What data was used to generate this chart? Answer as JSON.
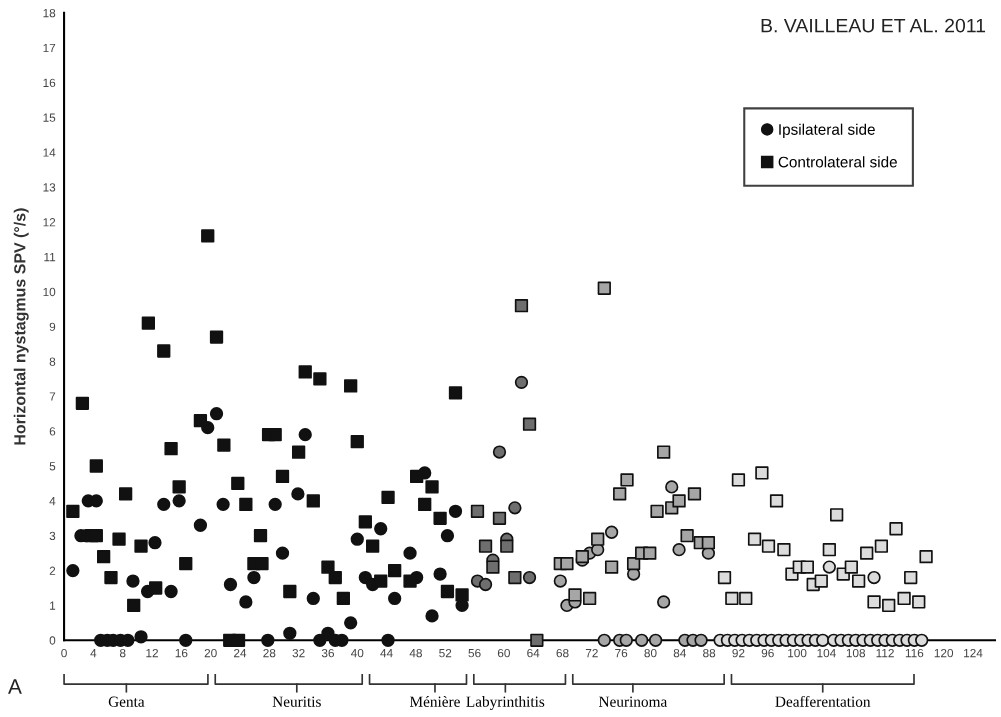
{
  "chart_data": {
    "type": "scatter",
    "ylabel": "Horizontal nystagmus SPV (°/s)",
    "xlim": [
      0,
      127
    ],
    "xticks": [
      0,
      4,
      8,
      12,
      16,
      20,
      24,
      28,
      32,
      36,
      40,
      44,
      48,
      52,
      56,
      60,
      64,
      68,
      72,
      76,
      80,
      84,
      88,
      92,
      96,
      100,
      104,
      108,
      112,
      116,
      120,
      124
    ],
    "ylim": [
      0,
      18
    ],
    "yticks": [
      0,
      1,
      2,
      3,
      4,
      5,
      6,
      7,
      8,
      9,
      10,
      11,
      12,
      13,
      14,
      15,
      16,
      17,
      18
    ],
    "grid": false,
    "legend": "top right",
    "annotations": [
      "B. VAILLEAU ET AL. 2011",
      "A",
      {
        "text": "Genta",
        "x": 8.5
      },
      {
        "text": "Neuritis",
        "x": 31.75
      },
      {
        "text": "Ménière",
        "x": 50.6
      },
      {
        "text": "Labyrinthitis",
        "x": 60.2
      },
      {
        "text": "Neurinoma",
        "x": 77.6
      },
      {
        "text": "Deafferentation",
        "x": 103.5
      }
    ],
    "series": [
      {
        "name": "Ipsilateral side",
        "marker": "circle",
        "color": "#111111",
        "x": [
          1.2,
          2.3,
          3.0,
          3.3,
          4.4,
          5.0,
          5.9,
          6.7,
          7.7,
          8.7,
          9.4,
          10.5,
          11.4,
          12.4,
          13.6,
          14.6,
          15.7,
          16.6,
          18.6,
          19.6,
          20.8,
          21.7,
          22.7,
          24.8,
          25.9,
          27.8,
          28.8,
          29.8,
          30.8,
          31.9,
          32.9,
          34.0,
          34.9,
          36.0,
          37.0,
          37.9,
          39.1,
          40.0,
          41.1,
          42.1,
          43.2,
          44.2,
          45.1,
          47.2,
          48.1,
          49.2,
          50.2,
          51.3,
          52.3,
          53.4,
          54.3,
          56.4,
          57.5,
          58.5,
          59.4,
          60.4,
          61.5,
          62.4,
          63.5,
          67.7,
          68.6,
          69.7,
          70.7,
          71.7,
          72.8,
          73.7,
          74.7,
          75.8,
          76.7,
          77.7,
          78.8,
          80.7,
          81.8,
          82.9,
          83.9,
          84.7,
          85.8,
          86.9,
          87.9,
          89.5,
          90.5,
          91.5,
          92.5,
          93.5,
          94.5,
          95.5,
          96.5,
          97.5,
          98.5,
          99.5,
          100.5,
          101.5,
          102.5,
          103.5,
          104.4,
          105,
          106,
          107,
          108,
          109,
          110,
          110.5,
          111,
          112,
          113,
          114,
          115,
          116,
          117
        ],
        "values": [
          2.0,
          3.0,
          3.0,
          4.0,
          4.0,
          0,
          0,
          0,
          0,
          0,
          1.7,
          0.1,
          1.4,
          2.8,
          3.9,
          1.4,
          4.0,
          0,
          3.3,
          6.1,
          6.5,
          3.9,
          1.6,
          1.1,
          1.8,
          0,
          3.9,
          2.5,
          0.2,
          4.2,
          5.9,
          1.2,
          0,
          0.2,
          0,
          0,
          0.5,
          2.9,
          1.8,
          1.6,
          3.2,
          0,
          1.2,
          2.5,
          1.8,
          4.8,
          0.7,
          1.9,
          3.0,
          3.7,
          1.0,
          1.7,
          1.6,
          2.3,
          5.4,
          2.9,
          3.8,
          7.4,
          1.8,
          1.7,
          1.0,
          1.1,
          2.3,
          2.5,
          2.6,
          0,
          3.1,
          0,
          0,
          1.9,
          0,
          0,
          1.1,
          4.4,
          2.6,
          0,
          0,
          0,
          2.5,
          0,
          0,
          0,
          0,
          0,
          0,
          0,
          0,
          0,
          0,
          0,
          0,
          0,
          0,
          0,
          2.1,
          0,
          0,
          0,
          0,
          0,
          0,
          1.8,
          0,
          0,
          0,
          0,
          0,
          0,
          0
        ],
        "colors": [
          "#111111",
          "#111111",
          "#111111",
          "#111111",
          "#111111",
          "#111111",
          "#111111",
          "#111111",
          "#111111",
          "#111111",
          "#111111",
          "#111111",
          "#111111",
          "#111111",
          "#111111",
          "#111111",
          "#111111",
          "#111111",
          "#111111",
          "#111111",
          "#111111",
          "#111111",
          "#111111",
          "#111111",
          "#111111",
          "#111111",
          "#111111",
          "#111111",
          "#111111",
          "#111111",
          "#111111",
          "#111111",
          "#111111",
          "#111111",
          "#111111",
          "#111111",
          "#111111",
          "#111111",
          "#111111",
          "#111111",
          "#111111",
          "#111111",
          "#111111",
          "#111111",
          "#111111",
          "#111111",
          "#111111",
          "#111111",
          "#111111",
          "#111111",
          "#111111",
          "#6e6e6e",
          "#6e6e6e",
          "#6e6e6e",
          "#6e6e6e",
          "#6e6e6e",
          "#6e6e6e",
          "#6e6e6e",
          "#6e6e6e",
          "#a6a6a6",
          "#a6a6a6",
          "#a6a6a6",
          "#a6a6a6",
          "#a6a6a6",
          "#a6a6a6",
          "#a6a6a6",
          "#a6a6a6",
          "#a6a6a6",
          "#a6a6a6",
          "#a6a6a6",
          "#a6a6a6",
          "#a6a6a6",
          "#a6a6a6",
          "#a6a6a6",
          "#a6a6a6",
          "#a6a6a6",
          "#a6a6a6",
          "#a6a6a6",
          "#a6a6a6",
          "#dcdcdc",
          "#dcdcdc",
          "#dcdcdc",
          "#dcdcdc",
          "#dcdcdc",
          "#dcdcdc",
          "#dcdcdc",
          "#dcdcdc",
          "#dcdcdc",
          "#dcdcdc",
          "#dcdcdc",
          "#dcdcdc",
          "#dcdcdc",
          "#dcdcdc",
          "#dcdcdc",
          "#dcdcdc",
          "#dcdcdc",
          "#dcdcdc",
          "#dcdcdc",
          "#dcdcdc",
          "#dcdcdc",
          "#dcdcdc",
          "#dcdcdc",
          "#dcdcdc",
          "#dcdcdc",
          "#dcdcdc",
          "#dcdcdc",
          "#dcdcdc",
          "#dcdcdc",
          "#dcdcdc"
        ]
      },
      {
        "name": "Controlateral side",
        "marker": "square",
        "color": "#111111",
        "x": [
          1.2,
          2.5,
          3.8,
          4.4,
          4.4,
          5.4,
          6.4,
          7.5,
          8.4,
          9.5,
          10.5,
          11.5,
          12.5,
          13.6,
          14.6,
          15.7,
          16.6,
          18.6,
          19.6,
          20.8,
          21.8,
          22.6,
          23.8,
          23.7,
          24.8,
          25.9,
          27.0,
          26.8,
          27.9,
          28.8,
          29.8,
          30.8,
          32.0,
          32.9,
          34.0,
          34.9,
          36.0,
          37.0,
          38.1,
          39.1,
          40.0,
          41.1,
          42.1,
          43.2,
          44.2,
          45.1,
          47.2,
          48.1,
          49.2,
          50.2,
          51.3,
          52.3,
          53.4,
          54.3,
          56.4,
          57.5,
          58.5,
          59.4,
          60.4,
          61.5,
          62.4,
          63.5,
          64.5,
          67.7,
          68.6,
          69.7,
          70.7,
          71.7,
          72.8,
          73.7,
          74.7,
          75.8,
          76.8,
          77.7,
          78.8,
          79.9,
          80.9,
          81.8,
          82.9,
          83.9,
          85.0,
          86.0,
          86.8,
          87.9,
          90.1,
          91.1,
          92.0,
          93.0,
          94.2,
          95.2,
          96.1,
          97.2,
          98.2,
          99.3,
          100.3,
          101.4,
          102.2,
          103.3,
          104.4,
          105.4,
          106.3,
          107.4,
          108.4,
          109.5,
          110.5,
          111.5,
          112.5,
          113.5,
          114.6,
          115.5,
          116.6,
          117.6
        ],
        "values": [
          3.7,
          6.8,
          3.0,
          3.0,
          5.0,
          2.4,
          1.8,
          2.9,
          4.2,
          1.0,
          2.7,
          9.1,
          1.5,
          8.3,
          5.5,
          4.4,
          2.2,
          6.3,
          11.6,
          8.7,
          5.6,
          0,
          0,
          4.5,
          3.9,
          2.2,
          2.2,
          3.0,
          5.9,
          5.9,
          4.7,
          1.4,
          5.4,
          7.7,
          4.0,
          7.5,
          2.1,
          1.8,
          1.2,
          7.3,
          5.7,
          3.4,
          2.7,
          1.7,
          4.1,
          2.0,
          1.7,
          4.7,
          3.9,
          4.4,
          3.5,
          1.4,
          7.1,
          1.3,
          3.7,
          2.7,
          2.1,
          3.5,
          2.7,
          1.8,
          9.6,
          6.2,
          0,
          2.2,
          2.2,
          1.3,
          2.4,
          1.2,
          2.9,
          10.1,
          2.1,
          4.2,
          4.6,
          2.2,
          2.5,
          2.5,
          3.7,
          5.4,
          3.8,
          4.0,
          3.0,
          4.2,
          2.8,
          2.8,
          1.8,
          1.2,
          4.6,
          1.2,
          2.9,
          4.8,
          2.7,
          4.0,
          2.6,
          1.9,
          2.1,
          2.1,
          1.6,
          1.7,
          2.6,
          3.6,
          1.9,
          2.1,
          1.7,
          2.5,
          1.1,
          2.7,
          1.0,
          3.2,
          1.2,
          1.8,
          1.1,
          2.4
        ],
        "colors": [
          "#111111",
          "#111111",
          "#111111",
          "#111111",
          "#111111",
          "#111111",
          "#111111",
          "#111111",
          "#111111",
          "#111111",
          "#111111",
          "#111111",
          "#111111",
          "#111111",
          "#111111",
          "#111111",
          "#111111",
          "#111111",
          "#111111",
          "#111111",
          "#111111",
          "#111111",
          "#111111",
          "#111111",
          "#111111",
          "#111111",
          "#111111",
          "#111111",
          "#111111",
          "#111111",
          "#111111",
          "#111111",
          "#111111",
          "#111111",
          "#111111",
          "#111111",
          "#111111",
          "#111111",
          "#111111",
          "#111111",
          "#111111",
          "#111111",
          "#111111",
          "#111111",
          "#111111",
          "#111111",
          "#111111",
          "#111111",
          "#111111",
          "#111111",
          "#111111",
          "#111111",
          "#111111",
          "#111111",
          "#6e6e6e",
          "#6e6e6e",
          "#6e6e6e",
          "#6e6e6e",
          "#6e6e6e",
          "#6e6e6e",
          "#6e6e6e",
          "#6e6e6e",
          "#6e6e6e",
          "#a6a6a6",
          "#a6a6a6",
          "#a6a6a6",
          "#a6a6a6",
          "#a6a6a6",
          "#a6a6a6",
          "#a6a6a6",
          "#a6a6a6",
          "#a6a6a6",
          "#a6a6a6",
          "#a6a6a6",
          "#a6a6a6",
          "#a6a6a6",
          "#a6a6a6",
          "#a6a6a6",
          "#a6a6a6",
          "#a6a6a6",
          "#a6a6a6",
          "#a6a6a6",
          "#a6a6a6",
          "#a6a6a6",
          "#dcdcdc",
          "#dcdcdc",
          "#dcdcdc",
          "#dcdcdc",
          "#dcdcdc",
          "#dcdcdc",
          "#dcdcdc",
          "#dcdcdc",
          "#dcdcdc",
          "#dcdcdc",
          "#dcdcdc",
          "#dcdcdc",
          "#dcdcdc",
          "#dcdcdc",
          "#dcdcdc",
          "#dcdcdc",
          "#dcdcdc",
          "#dcdcdc",
          "#dcdcdc",
          "#dcdcdc",
          "#dcdcdc",
          "#dcdcdc",
          "#dcdcdc",
          "#dcdcdc",
          "#dcdcdc",
          "#dcdcdc",
          "#dcdcdc",
          "#dcdcdc"
        ]
      }
    ]
  }
}
